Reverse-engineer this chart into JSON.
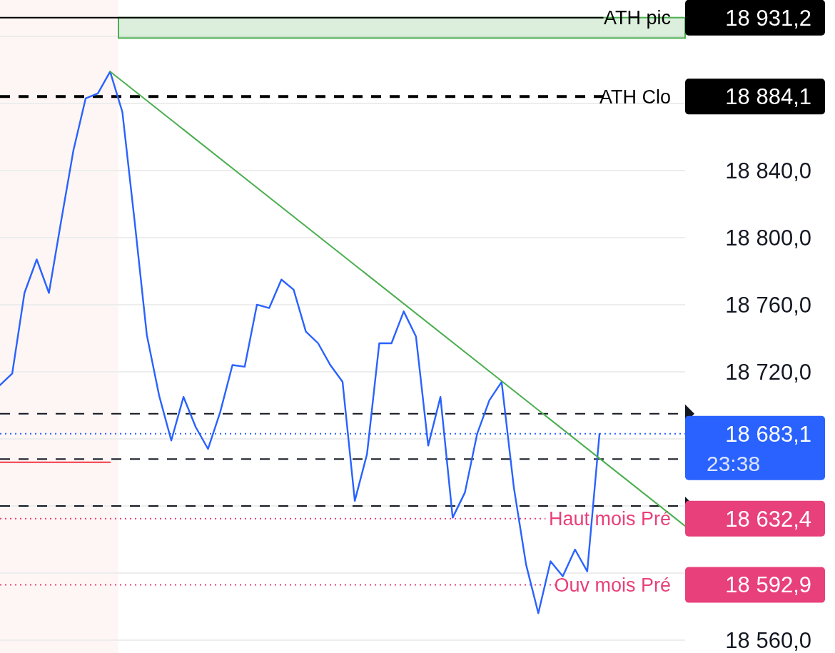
{
  "chart_data": {
    "type": "line",
    "categories": [
      null,
      null,
      null,
      null,
      null,
      null,
      null,
      null,
      null,
      null,
      null,
      null,
      null,
      null,
      null,
      null,
      null,
      null,
      null,
      null,
      null,
      null,
      null,
      null,
      null,
      null,
      null,
      null,
      null,
      null,
      null,
      null,
      null,
      null,
      null,
      null,
      null,
      null,
      null,
      null,
      null,
      null,
      null,
      null,
      null,
      null,
      null,
      null,
      null,
      null,
      null,
      null,
      null,
      null,
      null,
      null,
      null
    ],
    "ylim": [
      18552.3,
      18941.7
    ],
    "yticks": [
      {
        "value": 18560,
        "label": "18 560,0"
      },
      {
        "value": 18600,
        "label": null
      },
      {
        "value": 18640,
        "label": null
      },
      {
        "value": 18680,
        "label": null
      },
      {
        "value": 18720,
        "label": "18 720,0"
      },
      {
        "value": 18760,
        "label": "18 760,0"
      },
      {
        "value": 18800,
        "label": "18 800,0"
      },
      {
        "value": 18840,
        "label": "18 840,0"
      },
      {
        "value": 18880,
        "label": null
      },
      {
        "value": 18920,
        "label": null
      }
    ],
    "tick_labels": "y",
    "grid": "y",
    "legend": false,
    "marker": "none",
    "series": [
      {
        "color": "#2962ff",
        "values": [
          18712,
          18719,
          18767,
          18787,
          18767,
          18810,
          18852,
          18883,
          18886,
          18899,
          18875,
          18810,
          18742,
          18706,
          18679,
          18705,
          18687,
          18674,
          18696,
          18724,
          18723,
          18760,
          18758,
          18775,
          18769,
          18744,
          18737,
          18724,
          18714,
          18643,
          18671,
          18737,
          18737,
          18756,
          18741,
          18676,
          18705,
          18633,
          18648,
          18683,
          18703,
          18714,
          18651,
          18605,
          18576,
          18607,
          18598,
          18614,
          18601,
          18683,
          null,
          null,
          null,
          null,
          null,
          null,
          null
        ]
      },
      {
        "type": "line",
        "color": "#4caf50",
        "values": [
          null,
          null,
          null,
          null,
          null,
          null,
          null,
          null,
          null,
          18899,
          null,
          null,
          null,
          null,
          null,
          null,
          null,
          null,
          null,
          null,
          null,
          null,
          null,
          null,
          null,
          null,
          null,
          null,
          null,
          null,
          null,
          null,
          null,
          null,
          null,
          null,
          null,
          null,
          null,
          null,
          null,
          null,
          null,
          null,
          null,
          null,
          null,
          null,
          null,
          null,
          null,
          null,
          null,
          null,
          null,
          null,
          18628
        ]
      },
      {
        "type": "line",
        "color": "#f23645",
        "values": [
          18666,
          18666,
          18666,
          18666,
          18666,
          18666,
          18666,
          18666,
          18666,
          18666,
          null,
          null,
          null,
          null,
          null,
          null,
          null,
          null,
          null,
          null,
          null,
          null,
          null,
          null,
          null,
          null,
          null,
          null,
          null,
          null,
          null,
          null,
          null,
          null,
          null,
          null,
          null,
          null,
          null,
          null,
          null,
          null,
          null,
          null,
          null,
          null,
          null,
          null,
          null,
          null,
          null,
          null,
          null,
          null,
          null,
          null,
          null
        ]
      }
    ],
    "ref_lines": [
      {
        "axis": "y",
        "value": 18931.2,
        "label": "ATH pic",
        "color": "#000000",
        "line_style": "solid"
      },
      {
        "axis": "y",
        "value": 18884.1,
        "label": "ATH Clo",
        "color": "#000000",
        "line_style": "dashed"
      },
      {
        "axis": "y",
        "value": 18695,
        "color": "#131722",
        "line_style": "dashed"
      },
      {
        "axis": "y",
        "value": 18683.1,
        "color": "#2962ff",
        "line_style": "dotted"
      },
      {
        "axis": "y",
        "value": 18668,
        "color": "#131722",
        "line_style": "dashed"
      },
      {
        "axis": "y",
        "value": 18640,
        "color": "#131722",
        "line_style": "dashed"
      },
      {
        "axis": "y",
        "value": 18632.4,
        "label": "Haut mois Pré",
        "color": "#e8407a",
        "line_style": "dotted"
      },
      {
        "axis": "y",
        "value": 18592.9,
        "label": "Ouv mois Pré",
        "color": "#e8407a",
        "line_style": "dotted"
      }
    ],
    "bands": [
      {
        "axis": "y",
        "from": 18919,
        "to": 18931.2,
        "color": "#4caf50"
      }
    ],
    "annotations": [
      "18 931,2",
      "18 884,1",
      "18 683,1",
      "18 632,4",
      "18 592,9",
      "23:38"
    ]
  }
}
